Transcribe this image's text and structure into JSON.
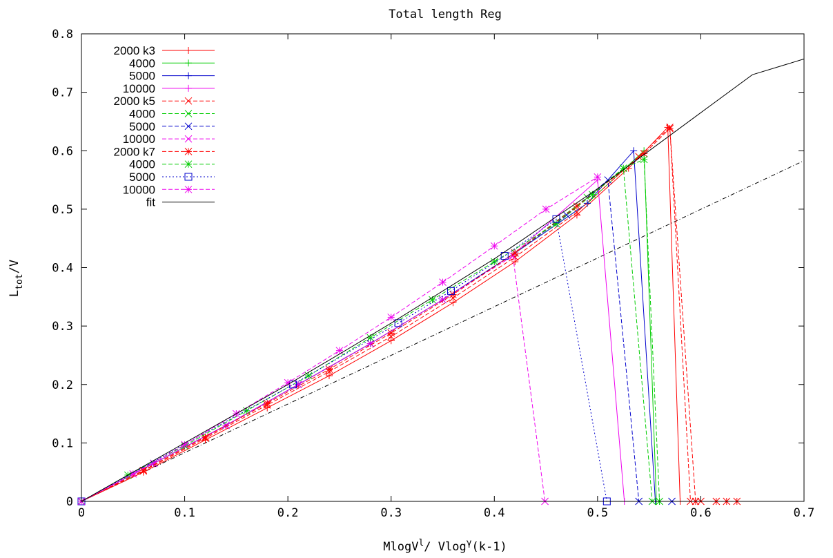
{
  "chart_data": {
    "type": "line",
    "title": "Total length Reg",
    "xlabel": {
      "base": "MlogV",
      "sup1": "l",
      "mid": "/ Vlog",
      "sup2": "γ",
      "tail": "(k-1)"
    },
    "ylabel": {
      "base": "L",
      "sub": "tot",
      "tail": "/V"
    },
    "xlim": [
      0,
      0.7
    ],
    "ylim": [
      0,
      0.8
    ],
    "xticks": [
      "0",
      "0.1",
      "0.2",
      "0.3",
      "0.4",
      "0.5",
      "0.6",
      "0.7"
    ],
    "yticks": [
      "0",
      "0.1",
      "0.2",
      "0.3",
      "0.4",
      "0.5",
      "0.6",
      "0.7",
      "0.8"
    ],
    "grid": false,
    "legend_position": "top-left",
    "series": [
      {
        "name": "2000 k3",
        "color": "#ff0000",
        "dash": "solid",
        "marker": "plus",
        "x": [
          0,
          0.06,
          0.12,
          0.18,
          0.24,
          0.3,
          0.36,
          0.42,
          0.48,
          0.53,
          0.568,
          0.58
        ],
        "y": [
          0,
          0.05,
          0.105,
          0.16,
          0.215,
          0.275,
          0.34,
          0.41,
          0.49,
          0.57,
          0.64,
          0
        ]
      },
      {
        "name": "4000",
        "color": "#00cc00",
        "dash": "solid",
        "marker": "plus",
        "x": [
          0,
          0.07,
          0.14,
          0.21,
          0.28,
          0.35,
          0.42,
          0.49,
          0.545,
          0.557
        ],
        "y": [
          0,
          0.065,
          0.13,
          0.2,
          0.27,
          0.345,
          0.425,
          0.51,
          0.6,
          0
        ]
      },
      {
        "name": "5000",
        "color": "#0000cc",
        "dash": "solid",
        "marker": "plus",
        "x": [
          0,
          0.07,
          0.14,
          0.21,
          0.28,
          0.35,
          0.42,
          0.49,
          0.535,
          0.556
        ],
        "y": [
          0,
          0.065,
          0.13,
          0.2,
          0.27,
          0.345,
          0.425,
          0.51,
          0.6,
          0
        ]
      },
      {
        "name": "10000",
        "color": "#ee00ee",
        "dash": "solid",
        "marker": "plus",
        "x": [
          0,
          0.07,
          0.14,
          0.21,
          0.28,
          0.35,
          0.42,
          0.5,
          0.526
        ],
        "y": [
          0,
          0.065,
          0.13,
          0.2,
          0.27,
          0.345,
          0.425,
          0.55,
          0
        ]
      },
      {
        "name": "2000 k5",
        "color": "#ff0000",
        "dash": "dashed",
        "marker": "cross",
        "x": [
          0,
          0.06,
          0.12,
          0.18,
          0.24,
          0.3,
          0.36,
          0.42,
          0.48,
          0.54,
          0.57,
          0.59,
          0.6
        ],
        "y": [
          0,
          0.052,
          0.108,
          0.165,
          0.222,
          0.282,
          0.348,
          0.418,
          0.495,
          0.59,
          0.64,
          0,
          0
        ]
      },
      {
        "name": "4000",
        "color": "#00cc00",
        "dash": "dashed",
        "marker": "cross",
        "x": [
          0,
          0.07,
          0.14,
          0.21,
          0.28,
          0.35,
          0.42,
          0.49,
          0.525,
          0.553
        ],
        "y": [
          0,
          0.065,
          0.13,
          0.2,
          0.27,
          0.345,
          0.425,
          0.52,
          0.57,
          0
        ]
      },
      {
        "name": "5000",
        "color": "#0000cc",
        "dash": "dashed",
        "marker": "cross",
        "x": [
          0,
          0.07,
          0.14,
          0.21,
          0.28,
          0.35,
          0.42,
          0.47,
          0.51,
          0.54,
          0.572
        ],
        "y": [
          0,
          0.065,
          0.13,
          0.2,
          0.27,
          0.345,
          0.425,
          0.49,
          0.55,
          0,
          0
        ]
      },
      {
        "name": "10000",
        "color": "#ee00ee",
        "dash": "dashed",
        "marker": "cross",
        "x": [
          0,
          0.07,
          0.14,
          0.21,
          0.28,
          0.35,
          0.418,
          0.449
        ],
        "y": [
          0,
          0.065,
          0.13,
          0.2,
          0.27,
          0.345,
          0.42,
          0
        ]
      },
      {
        "name": "2000 k7",
        "color": "#ff0000",
        "dash": "dashed",
        "marker": "star",
        "x": [
          0,
          0.06,
          0.12,
          0.18,
          0.24,
          0.3,
          0.36,
          0.42,
          0.48,
          0.545,
          0.57,
          0.595,
          0.615,
          0.625,
          0.635
        ],
        "y": [
          0,
          0.053,
          0.11,
          0.168,
          0.226,
          0.288,
          0.354,
          0.425,
          0.505,
          0.595,
          0.638,
          0,
          0,
          0,
          0
        ]
      },
      {
        "name": "4000",
        "color": "#00cc00",
        "dash": "dashed",
        "marker": "star",
        "x": [
          0,
          0.045,
          0.1,
          0.16,
          0.22,
          0.28,
          0.34,
          0.4,
          0.46,
          0.495,
          0.525,
          0.545,
          0.56
        ],
        "y": [
          0,
          0.045,
          0.095,
          0.155,
          0.215,
          0.28,
          0.345,
          0.41,
          0.475,
          0.525,
          0.57,
          0.585,
          0
        ]
      },
      {
        "name": "5000",
        "color": "#0000cc",
        "dash": "dotted",
        "marker": "square",
        "x": [
          0,
          0.205,
          0.307,
          0.358,
          0.41,
          0.46,
          0.509
        ],
        "y": [
          0,
          0.2,
          0.305,
          0.36,
          0.42,
          0.483,
          0
        ]
      },
      {
        "name": "10000",
        "color": "#ee00ee",
        "dash": "dashed",
        "marker": "star",
        "x": [
          0,
          0.05,
          0.1,
          0.15,
          0.2,
          0.25,
          0.3,
          0.35,
          0.4,
          0.45,
          0.5
        ],
        "y": [
          0,
          0.047,
          0.097,
          0.15,
          0.203,
          0.258,
          0.315,
          0.375,
          0.437,
          0.5,
          0.555
        ]
      },
      {
        "name": "fit",
        "color": "#000000",
        "dash": "solid",
        "marker": "none",
        "x": [
          0,
          0.05,
          0.1,
          0.15,
          0.2,
          0.25,
          0.3,
          0.35,
          0.4,
          0.45,
          0.5,
          0.55,
          0.6,
          0.65,
          0.7
        ],
        "y": [
          0,
          0.05,
          0.1,
          0.15,
          0.2,
          0.252,
          0.305,
          0.36,
          0.415,
          0.475,
          0.535,
          0.6,
          0.665,
          0.73,
          0.757
        ]
      }
    ],
    "reference_line": {
      "color": "#000000",
      "dash": "dashdot",
      "x": [
        0,
        0.7
      ],
      "y": [
        0,
        0.583
      ]
    }
  }
}
